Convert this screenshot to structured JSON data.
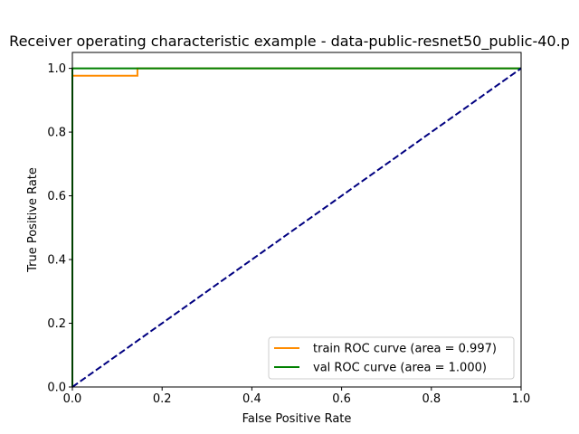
{
  "chart_data": {
    "type": "line",
    "title": "Receiver operating characteristic example - data-public-resnet50_public-40.p",
    "xlabel": "False Positive Rate",
    "ylabel": "True Positive Rate",
    "xlim": [
      0.0,
      1.0
    ],
    "ylim": [
      0.0,
      1.05
    ],
    "xticks": [
      "0.0",
      "0.2",
      "0.4",
      "0.6",
      "0.8",
      "1.0"
    ],
    "yticks": [
      "0.0",
      "0.2",
      "0.4",
      "0.6",
      "0.8",
      "1.0"
    ],
    "grid": false,
    "legend_position": "lower-right",
    "series": [
      {
        "name": "train ROC curve (area = 0.997)",
        "color": "#ff8c00",
        "x": [
          0.0,
          0.0,
          0.145,
          0.145,
          1.0
        ],
        "y": [
          0.0,
          0.977,
          0.977,
          1.0,
          1.0
        ]
      },
      {
        "name": "val ROC curve (area = 1.000)",
        "color": "#008000",
        "x": [
          0.0,
          0.0,
          1.0
        ],
        "y": [
          0.0,
          1.0,
          1.0
        ]
      },
      {
        "color": "#000080",
        "dashed": true,
        "x": [
          0.0,
          1.0
        ],
        "y": [
          0.0,
          1.0
        ]
      }
    ]
  }
}
